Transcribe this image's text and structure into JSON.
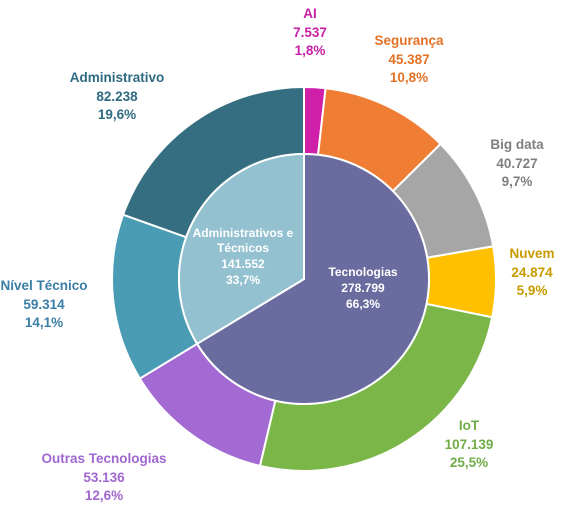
{
  "chart_data": {
    "type": "pie",
    "subtype": "nested-donut",
    "inner_ring": [
      {
        "name": "Tecnologias",
        "value": "278.799",
        "percent": "66,3%",
        "numeric": 278799,
        "color": "#6a6b9e"
      },
      {
        "name": "Administrativos e Técnicos",
        "value": "141.552",
        "percent": "33,7%",
        "numeric": 141552,
        "color": "#93c1d0"
      }
    ],
    "outer_ring": [
      {
        "name": "AI",
        "value": "7.537",
        "percent": "1,8%",
        "numeric": 7537,
        "color": "#d01fa8",
        "label_color": "#c71fa6",
        "group": "Tecnologias"
      },
      {
        "name": "Segurança",
        "value": "45.387",
        "percent": "10,8%",
        "numeric": 45387,
        "color": "#ef7d33",
        "label_color": "#e37125",
        "group": "Tecnologias"
      },
      {
        "name": "Big data",
        "value": "40.727",
        "percent": "9,7%",
        "numeric": 40727,
        "color": "#a6a6a6",
        "label_color": "#7f7f7f",
        "group": "Tecnologias"
      },
      {
        "name": "Nuvem",
        "value": "24.874",
        "percent": "5,9%",
        "numeric": 24874,
        "color": "#fec000",
        "label_color": "#c99a00",
        "group": "Tecnologias"
      },
      {
        "name": "IoT",
        "value": "107.139",
        "percent": "25,5%",
        "numeric": 107139,
        "color": "#7ab648",
        "label_color": "#70ad47",
        "group": "Tecnologias"
      },
      {
        "name": "Outras Tecnologias",
        "value": "53.136",
        "percent": "12,6%",
        "numeric": 53136,
        "color": "#a26ad2",
        "label_color": "#a067d0",
        "group": "Tecnologias"
      },
      {
        "name": "Nível Técnico",
        "value": "59.314",
        "percent": "14,1%",
        "numeric": 59314,
        "color": "#4a9cb4",
        "label_color": "#3a7ea6",
        "group": "Administrativos e Técnicos"
      },
      {
        "name": "Administrativo",
        "value": "82.238",
        "percent": "19,6%",
        "numeric": 82238,
        "color": "#356e80",
        "label_color": "#2e6a82",
        "group": "Administrativos e Técnicos"
      }
    ],
    "start_angle_deg": 0,
    "direction": "clockwise",
    "legend": "none",
    "title": ""
  }
}
